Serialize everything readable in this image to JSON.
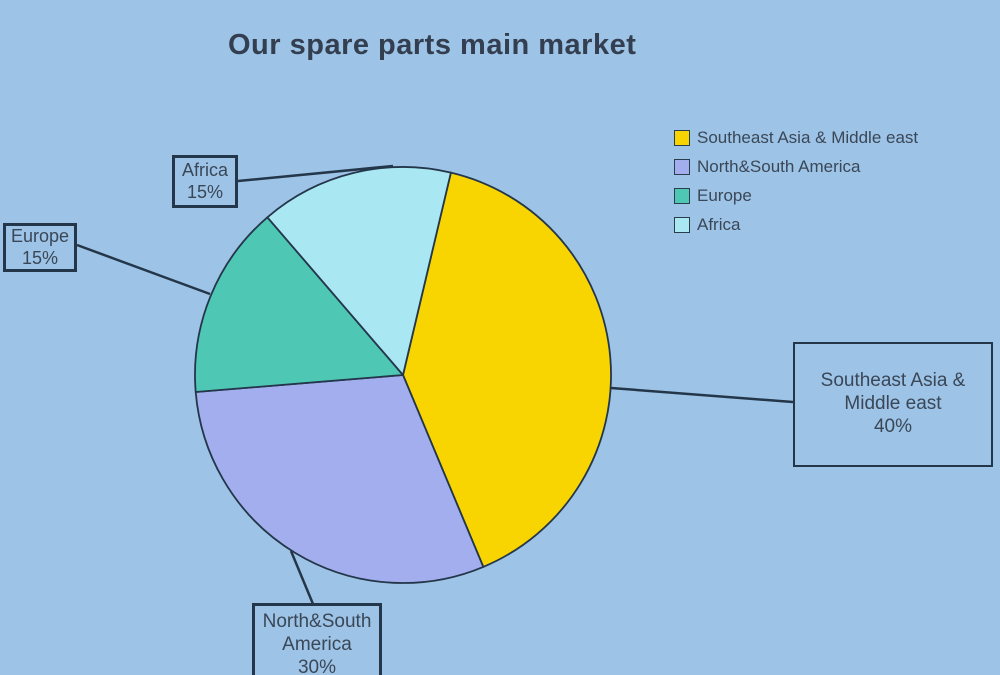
{
  "page": {
    "background_color": "#9DC3E6"
  },
  "chart_data": {
    "type": "pie",
    "title": "Our spare parts main market",
    "slices": [
      {
        "label": "Southeast Asia & Middle east",
        "value": 40,
        "percent_label": "40%",
        "color": "#F8D501"
      },
      {
        "label": "North&South America",
        "value": 30,
        "percent_label": "30%",
        "color": "#A3AEEF"
      },
      {
        "label": "Europe",
        "value": 15,
        "percent_label": "15%",
        "color": "#4EC7B5"
      },
      {
        "label": "Africa",
        "value": 15,
        "percent_label": "15%",
        "color": "#A9E7F2"
      }
    ],
    "start_angle_deg": 13.3,
    "legend_position": "top-right",
    "stroke_color": "#24374A",
    "callouts": {
      "africa": {
        "line1": "Africa",
        "line2": "15%"
      },
      "europe": {
        "line1": "Europe",
        "line2": "15%"
      },
      "seasia": {
        "line1": "Southeast Asia &",
        "line2": "Middle east",
        "line3": "40%"
      },
      "america": {
        "line1": "North&South",
        "line2": "America",
        "line3": "30%"
      }
    }
  }
}
